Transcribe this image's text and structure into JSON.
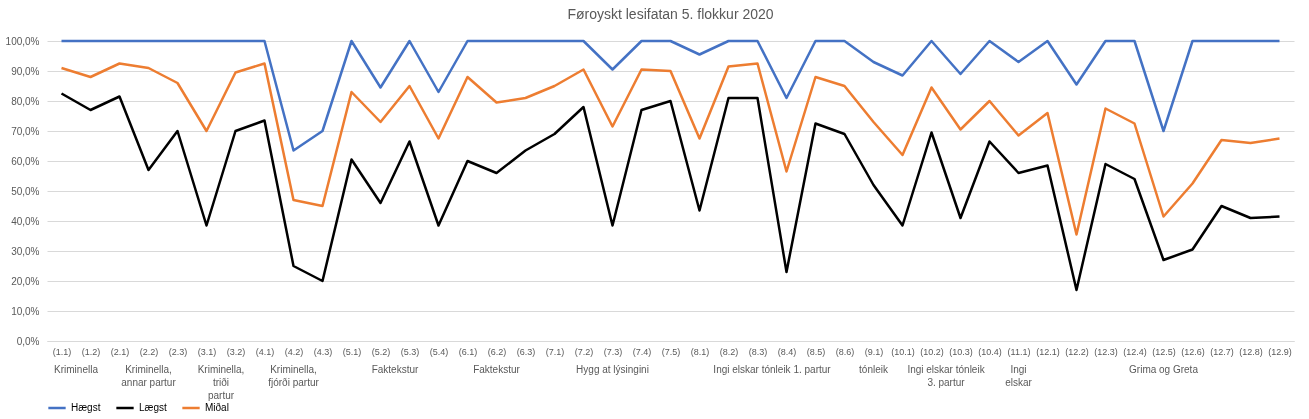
{
  "chart_data": {
    "type": "line",
    "title": "Føroyskt lesifatan 5. flokkur 2020",
    "categories": [
      "(1.1)",
      "(1.2)",
      "(2.1)",
      "(2.2)",
      "(2.3)",
      "(3.1)",
      "(3.2)",
      "(4.1)",
      "(4.2)",
      "(4.3)",
      "(5.1)",
      "(5.2)",
      "(5.3)",
      "(5.4)",
      "(6.1)",
      "(6.2)",
      "(6.3)",
      "(7.1)",
      "(7.2)",
      "(7.3)",
      "(7.4)",
      "(7.5)",
      "(8.1)",
      "(8.2)",
      "(8.3)",
      "(8.4)",
      "(8.5)",
      "(8.6)",
      "(9.1)",
      "(10.1)",
      "(10.2)",
      "(10.3)",
      "(10.4)",
      "(11.1)",
      "(12.1)",
      "(12.2)",
      "(12.3)",
      "(12.4)",
      "(12.5)",
      "(12.6)",
      "(12.7)",
      "(12.8)",
      "(12.9)"
    ],
    "series": [
      {
        "name": "Hægst",
        "color": "#4472c4",
        "values": [
          100,
          100,
          100,
          100,
          100,
          100,
          100,
          100,
          63.5,
          70,
          100,
          84.5,
          100,
          83,
          100,
          100,
          100,
          100,
          100,
          90.5,
          100,
          100,
          95.5,
          100,
          100,
          81,
          100,
          100,
          93,
          88.5,
          100,
          89,
          100,
          93,
          100,
          85.5,
          100,
          100,
          70,
          100,
          100,
          100,
          100
        ]
      },
      {
        "name": "Lægst",
        "color": "#000000",
        "values": [
          82.5,
          77,
          81.5,
          57,
          70,
          38.5,
          70,
          73.5,
          25,
          20,
          60.5,
          46,
          66.5,
          38.5,
          60,
          56,
          63.5,
          69,
          78,
          38.5,
          77,
          80,
          43.5,
          81,
          81,
          23,
          72.5,
          69,
          52,
          38.5,
          69.5,
          41,
          66.5,
          56,
          58.5,
          17,
          59,
          54,
          27,
          30.5,
          45,
          41,
          41.5
        ]
      },
      {
        "name": "Miðal",
        "color": "#ed7d31",
        "values": [
          91,
          88,
          92.5,
          91,
          86,
          70,
          89.5,
          92.5,
          47,
          45,
          83,
          73,
          85,
          67.5,
          88,
          79.5,
          81,
          85,
          90.5,
          71.5,
          90.5,
          90,
          67.5,
          91.5,
          92.5,
          56.5,
          88,
          85,
          73,
          62,
          84.5,
          70.5,
          80,
          68.5,
          76,
          35.5,
          77.5,
          72.5,
          41.5,
          52.5,
          67,
          66,
          67.5
        ]
      }
    ],
    "ylim": [
      0,
      100
    ],
    "yticks": [
      {
        "value": 0,
        "label": "0,0%"
      },
      {
        "value": 10,
        "label": "10,0%"
      },
      {
        "value": 20,
        "label": "20,0%"
      },
      {
        "value": 30,
        "label": "30,0%"
      },
      {
        "value": 40,
        "label": "40,0%"
      },
      {
        "value": 50,
        "label": "50,0%"
      },
      {
        "value": 60,
        "label": "60,0%"
      },
      {
        "value": 70,
        "label": "70,0%"
      },
      {
        "value": 80,
        "label": "80,0%"
      },
      {
        "value": 90,
        "label": "90,0%"
      },
      {
        "value": 100,
        "label": "100,0%"
      }
    ],
    "grid": "y",
    "legend": "bottom",
    "annotations": [
      "Kriminella",
      "Kriminella, annar partur",
      "Kriminella, triði partur",
      "Kriminella, fjórði partur",
      "Faktekstur",
      "Faktekstur",
      "Hygg at lýsingini",
      "Ingi elskar tónleik 1. partur",
      "tónleik",
      "Ingi elskar tónleik 3. partur",
      "Ingi elskar",
      "Grima og Greta"
    ]
  }
}
